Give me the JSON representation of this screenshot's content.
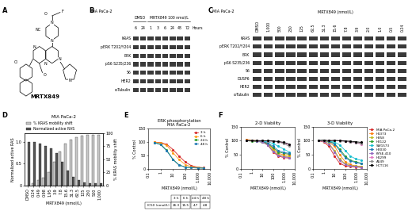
{
  "panel_labels": [
    "A",
    "B",
    "C",
    "D",
    "E",
    "F"
  ],
  "structure": {
    "name": "MRTX849",
    "atoms": [
      "O",
      "F",
      "N",
      "N",
      "NC",
      "N",
      "N",
      "N",
      "Cl",
      "O",
      "N"
    ]
  },
  "blots": [
    {
      "cell_line": "MIA PaCa-2",
      "groups": [
        {
          "label": "DMSO",
          "lanes": 2
        },
        {
          "label": "MRTX849 100 nmol/L",
          "lanes": 6
        }
      ],
      "lanes": [
        "6",
        "24",
        "1",
        "3",
        "6",
        "24",
        "48",
        "72"
      ],
      "lane_unit": "Hours",
      "rows": [
        "KRAS",
        "pERK T202/Y204",
        "ERK",
        "pS6 S235/236",
        "S6",
        "HER2",
        "α-Tubulin"
      ]
    },
    {
      "cell_line": "MIA PaCa-2",
      "header": "MRTX849 (nmol/L)",
      "lanes": [
        "DMSO",
        "1,000",
        "500",
        "250",
        "125",
        "62.5",
        "31.3",
        "15.6",
        "7.8",
        "3.9",
        "2.0",
        "1.0",
        "0.5",
        "0.24"
      ],
      "rows": [
        "KRAS",
        "pERK T202/Y204",
        "ERK",
        "pS6 S235/236",
        "S6",
        "DUSP6",
        "HER2",
        "α-Tubulin"
      ]
    }
  ],
  "chart_data": [
    {
      "type": "bar",
      "title": "MIA PaCa-2",
      "x_label": "MRTX849 (nmol/L)",
      "y_label": "Normalized active RAS",
      "y2_label": "% KRAS mobility shift",
      "categories": [
        "DMSO",
        "0.24",
        "0.49",
        "0.98",
        "1.95",
        "3.9",
        "7.8",
        "15.6",
        "31.3",
        "62.5",
        "125",
        "250",
        "500",
        "1,000"
      ],
      "series": [
        {
          "name": "% KRAS mobility shift",
          "color": "#c8c8c8",
          "axis": "y2",
          "values": [
            0,
            5,
            10,
            15,
            25,
            45,
            65,
            80,
            88,
            92,
            95,
            96,
            97,
            97
          ]
        },
        {
          "name": "Normalized active RAS",
          "color": "#555555",
          "values": [
            1.0,
            1.0,
            0.95,
            0.9,
            0.85,
            0.75,
            0.55,
            0.35,
            0.2,
            0.12,
            0.08,
            0.06,
            0.05,
            0.05
          ]
        }
      ],
      "ylim": [
        0,
        1.2
      ],
      "yticks": [
        0,
        0.5,
        1.0
      ],
      "y2lim": [
        0,
        100
      ],
      "y2ticks": [
        0,
        25,
        50,
        75,
        100
      ],
      "legend": "lower left"
    },
    {
      "type": "line",
      "title": "ERK phosphorylation",
      "subtitle": "MIA PaCa-2",
      "x_label": "MRTX849 (nmol/L)",
      "y_label": "% Control",
      "log": "x",
      "marker": "o",
      "x": [
        0.3,
        1,
        3,
        10,
        30,
        100,
        300,
        1000,
        3000
      ],
      "series": [
        {
          "name": "3 h",
          "color": "#d62728",
          "values": [
            100,
            98,
            92,
            72,
            48,
            25,
            12,
            6,
            4
          ]
        },
        {
          "name": "6 h",
          "color": "#ff9f1c",
          "values": [
            100,
            96,
            88,
            60,
            35,
            15,
            8,
            5,
            3
          ]
        },
        {
          "name": "24 h",
          "color": "#2ca02c",
          "values": [
            98,
            92,
            70,
            35,
            15,
            6,
            4,
            3,
            3
          ]
        },
        {
          "name": "48 h",
          "color": "#1f77b4",
          "values": [
            98,
            90,
            68,
            34,
            14,
            6,
            4,
            3,
            2
          ]
        }
      ],
      "xlim": [
        0.1,
        10000
      ],
      "xticks": [
        0.1,
        1,
        10,
        100,
        {
          "value": 1000,
          "label": "1,000"
        },
        {
          "value": 10000,
          "label": "10,000"
        }
      ],
      "ylim": [
        0,
        150
      ],
      "yticks": [
        0,
        50,
        100,
        150
      ],
      "legend": "upper right",
      "table": {
        "row_label": "IC50 (nmol/L)",
        "columns": [
          "3 h",
          "6 h",
          "24 h",
          "48 h"
        ],
        "values": [
          26.3,
          15.5,
          4.7,
          4.8
        ]
      }
    },
    {
      "type": "line",
      "title": "2-D Viability",
      "x_label": "MRTX849 (nmol/L)",
      "y_label": "% Control",
      "log": "x",
      "marker": "o",
      "x": [
        0.3,
        1,
        3,
        10,
        30,
        100,
        300,
        1000,
        3000
      ],
      "series": [
        {
          "name": "MIA PaCa-2",
          "color": "#d62728",
          "values": [
            100,
            100,
            98,
            95,
            85,
            60,
            45,
            40,
            38
          ]
        },
        {
          "name": "H1373",
          "color": "#ff7f0e",
          "values": [
            105,
            102,
            100,
            98,
            90,
            70,
            55,
            50,
            48
          ]
        },
        {
          "name": "H358",
          "color": "#bcbd22",
          "values": [
            100,
            100,
            98,
            96,
            88,
            65,
            50,
            45,
            42
          ]
        },
        {
          "name": "H2122",
          "color": "#2ca02c",
          "values": [
            100,
            98,
            97,
            95,
            90,
            75,
            60,
            55,
            52
          ]
        },
        {
          "name": "SW1573",
          "color": "#17becf",
          "values": [
            100,
            100,
            100,
            98,
            96,
            90,
            80,
            70,
            60
          ]
        },
        {
          "name": "H2030",
          "color": "#1f77b4",
          "values": [
            100,
            100,
            99,
            97,
            92,
            80,
            65,
            58,
            55
          ]
        },
        {
          "name": "KYSE-410",
          "color": "#9467bd",
          "values": [
            100,
            100,
            98,
            95,
            85,
            62,
            48,
            43,
            40
          ]
        },
        {
          "name": "H1299",
          "color": "#e377c2",
          "values": [
            100,
            100,
            100,
            100,
            99,
            98,
            96,
            92,
            85
          ]
        },
        {
          "name": "A549",
          "color": "#8c8c8c",
          "values": [
            100,
            100,
            100,
            100,
            99,
            97,
            95,
            90,
            80
          ]
        },
        {
          "name": "HCT116",
          "color": "#000000",
          "values": [
            100,
            100,
            100,
            100,
            100,
            99,
            97,
            94,
            88
          ]
        }
      ],
      "xlim": [
        0.1,
        10000
      ],
      "xticks": [
        0.1,
        1,
        10,
        100,
        {
          "value": 1000,
          "label": "1,000"
        },
        {
          "value": 10000,
          "label": "10,000"
        }
      ],
      "ylim": [
        0,
        150
      ],
      "yticks": [
        0,
        50,
        100,
        150
      ]
    },
    {
      "type": "line",
      "title": "3-D Viability",
      "x_label": "MRTX849 (nmol/L)",
      "y_label": "% Control",
      "log": "x",
      "marker": "o",
      "x": [
        0.3,
        1,
        3,
        10,
        30,
        100,
        300,
        1000,
        3000
      ],
      "series": [
        {
          "name": "MIA PaCa-2",
          "color": "#d62728",
          "values": [
            100,
            95,
            80,
            45,
            20,
            10,
            8,
            6,
            5
          ]
        },
        {
          "name": "H1373",
          "color": "#ff7f0e",
          "values": [
            100,
            100,
            95,
            80,
            50,
            25,
            15,
            10,
            8
          ]
        },
        {
          "name": "H358",
          "color": "#bcbd22",
          "values": [
            100,
            98,
            90,
            65,
            35,
            18,
            12,
            10,
            8
          ]
        },
        {
          "name": "H2122",
          "color": "#2ca02c",
          "values": [
            100,
            100,
            98,
            90,
            70,
            45,
            30,
            25,
            20
          ]
        },
        {
          "name": "SW1573",
          "color": "#17becf",
          "values": [
            100,
            100,
            98,
            95,
            85,
            65,
            45,
            35,
            30
          ]
        },
        {
          "name": "H2030",
          "color": "#1f77b4",
          "values": [
            100,
            100,
            97,
            88,
            65,
            40,
            28,
            22,
            18
          ]
        },
        {
          "name": "KYSE-410",
          "color": "#9467bd",
          "values": [
            100,
            97,
            88,
            60,
            30,
            15,
            10,
            8,
            6
          ]
        },
        {
          "name": "H1299",
          "color": "#e377c2",
          "values": [
            100,
            100,
            100,
            100,
            100,
            98,
            95,
            92,
            88
          ]
        },
        {
          "name": "A549",
          "color": "#8c8c8c",
          "values": [
            100,
            100,
            100,
            100,
            99,
            97,
            95,
            93,
            90
          ]
        },
        {
          "name": "HCT116",
          "color": "#000000",
          "values": [
            100,
            102,
            100,
            101,
            100,
            99,
            98,
            96,
            94
          ]
        }
      ],
      "xlim": [
        0.1,
        10000
      ],
      "xticks": [
        0.1,
        1,
        10,
        100,
        {
          "value": 1000,
          "label": "1,000"
        },
        {
          "value": 10000,
          "label": "10,000"
        }
      ],
      "ylim": [
        0,
        150
      ],
      "yticks": [
        0,
        50,
        100,
        150
      ],
      "legend": "center left"
    }
  ]
}
